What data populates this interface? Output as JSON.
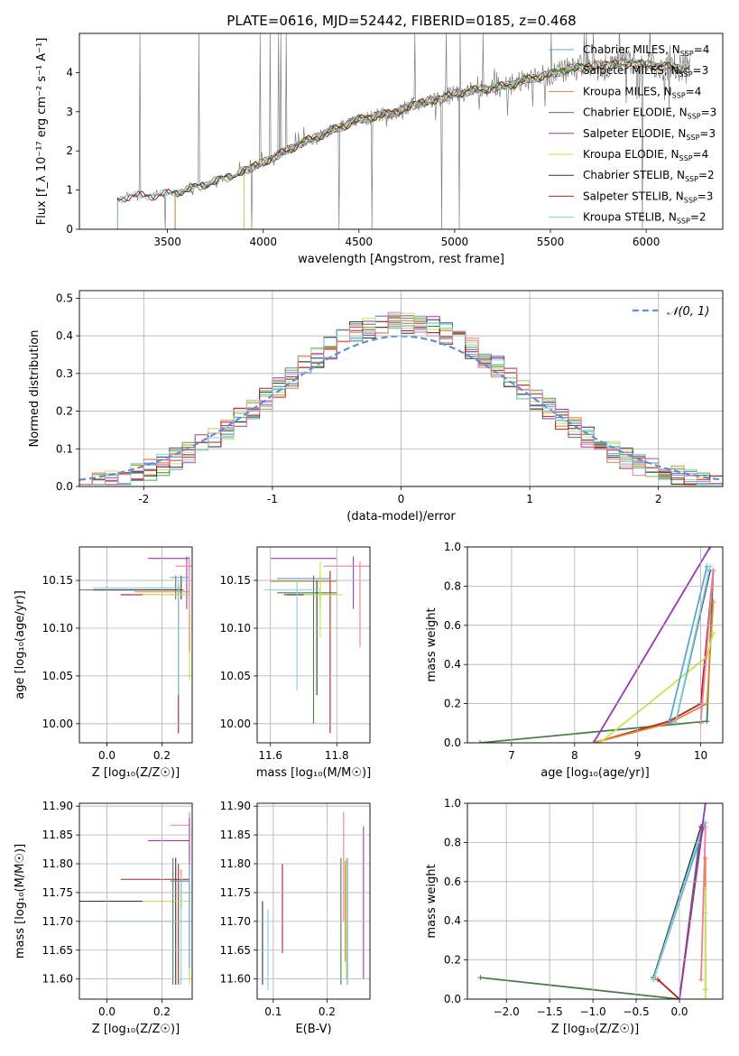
{
  "figure": {
    "title": "PLATE=0616, MJD=52442, FIBERID=0185, z=0.468"
  },
  "chart_data": [
    {
      "id": "spectrum",
      "type": "line",
      "xlabel": "wavelength [Angstrom, rest frame]",
      "ylabel": "Flux [f_λ 10⁻¹⁷ erg cm⁻² s⁻¹ A⁻¹]",
      "xlim": [
        3040,
        6400
      ],
      "ylim": [
        0,
        5
      ],
      "xticks": [
        3500,
        4000,
        4500,
        5000,
        5500,
        6000
      ],
      "yticks": [
        0,
        1,
        2,
        3,
        4
      ],
      "grid": false,
      "legend_position": "upper-right",
      "data_trend": {
        "x": [
          3240,
          3300,
          3400,
          3500,
          3600,
          3700,
          3800,
          3900,
          4000,
          4100,
          4200,
          4300,
          4400,
          4500,
          4600,
          4700,
          4800,
          4900,
          5000,
          5100,
          5200,
          5300,
          5400,
          5500,
          5600,
          5700,
          5800,
          5900,
          6000,
          6100,
          6200
        ],
        "y": [
          0.75,
          0.85,
          0.85,
          0.9,
          1.0,
          1.15,
          1.3,
          1.5,
          1.7,
          1.95,
          2.2,
          2.4,
          2.6,
          2.8,
          2.9,
          3.0,
          3.2,
          3.3,
          3.45,
          3.55,
          3.6,
          3.7,
          3.85,
          3.95,
          4.1,
          4.15,
          4.2,
          4.25,
          4.2,
          4.15,
          4.1
        ]
      },
      "series": [
        {
          "name": "Chabrier MILES",
          "nssp": "4",
          "color": "#5da5da",
          "start": 3540
        },
        {
          "name": "Salpeter MILES",
          "nssp": "3",
          "color": "#40b040",
          "start": 3540
        },
        {
          "name": "Kroupa MILES",
          "nssp": "4",
          "color": "#e3862f",
          "start": 3540
        },
        {
          "name": "Chabrier ELODIE",
          "nssp": "3",
          "color": "#4d7d4d",
          "start": 3900
        },
        {
          "name": "Salpeter ELODIE",
          "nssp": "3",
          "color": "#9b37b3",
          "start": 3900
        },
        {
          "name": "Kroupa ELODIE",
          "nssp": "4",
          "color": "#cde34b",
          "start": 3900
        },
        {
          "name": "Chabrier STELIB",
          "nssp": "2",
          "color": "#333333",
          "start": 3240
        },
        {
          "name": "Salpeter STELIB",
          "nssp": "3",
          "color": "#b22222",
          "start": 3240
        },
        {
          "name": "Kroupa STELIB",
          "nssp": "2",
          "color": "#7fd3df",
          "start": 3240
        }
      ]
    },
    {
      "id": "residuals",
      "type": "line",
      "xlabel": "(data-model)/error",
      "ylabel": "Normed distribution",
      "xlim": [
        -2.5,
        2.5
      ],
      "ylim": [
        0,
        0.52
      ],
      "xticks": [
        -2,
        -1,
        0,
        1,
        2
      ],
      "yticks": [
        0.0,
        0.1,
        0.2,
        0.3,
        0.4,
        0.5
      ],
      "ytick_labels": [
        "0.0",
        "0.1",
        "0.2",
        "0.3",
        "0.4",
        "0.5"
      ],
      "grid": true,
      "legend_position": "upper-right",
      "gaussian_legend": "𝒩(0, 1)",
      "gaussian_color": "#5b8fd9",
      "bin_edges_start": -2.5,
      "bin_width": 0.1,
      "hist_colors": [
        "#5da5da",
        "#40b040",
        "#e3862f",
        "#4d7d4d",
        "#9b37b3",
        "#cde34b",
        "#333333",
        "#b22222",
        "#7fd3df",
        "#f07c9b"
      ]
    },
    {
      "id": "age-vs-Z",
      "type": "scatter",
      "xlabel": "Z [log₁₀(Z/Z☉)]",
      "ylabel": "age  [log₁₀(age/yr)]",
      "xlim": [
        -0.1,
        0.31
      ],
      "ylim": [
        9.98,
        10.185
      ],
      "xticks": [
        0.0,
        0.2
      ],
      "xtick_labels": [
        "0.0",
        "0.2"
      ],
      "yticks": [
        10.0,
        10.05,
        10.1,
        10.15
      ],
      "ytick_labels": [
        "10.00",
        "10.05",
        "10.10",
        "10.15"
      ],
      "grid": true,
      "errorbars": [
        {
          "x": [
            -0.1,
            0.28
          ],
          "y": 10.14,
          "xc": 0.25,
          "yr": [
            10.13,
            10.155
          ],
          "color": "#4d7d4d"
        },
        {
          "x": [
            -0.05,
            0.27
          ],
          "y": 10.14,
          "xc": 0.27,
          "yr": [
            10.13,
            10.155
          ],
          "color": "#333333"
        },
        {
          "x": [
            0.05,
            0.3
          ],
          "y": 10.135,
          "xc": 0.26,
          "yr": [
            9.99,
            10.145
          ],
          "color": "#b22222"
        },
        {
          "x": [
            0.15,
            0.3
          ],
          "y": 10.173,
          "xc": 0.29,
          "yr": [
            10.12,
            10.175
          ],
          "color": "#9b37b3"
        },
        {
          "x": [
            0.13,
            0.3
          ],
          "y": 10.135,
          "xc": 0.3,
          "yr": [
            10.045,
            10.175
          ],
          "color": "#cde34b"
        },
        {
          "x": [
            0.1,
            0.3
          ],
          "y": 10.138,
          "xc": 0.3,
          "yr": [
            10.075,
            10.175
          ],
          "color": "#e3862f"
        },
        {
          "x": [
            0.23,
            0.3
          ],
          "y": 10.153,
          "xc": 0.3,
          "yr": [
            10.13,
            10.175
          ],
          "color": "#5da5da"
        },
        {
          "x": [
            0.25,
            0.31
          ],
          "y": 10.165,
          "xc": 0.3,
          "yr": [
            10.12,
            10.175
          ],
          "color": "#f07c9b"
        },
        {
          "x": [
            -0.05,
            0.27
          ],
          "y": 10.142,
          "xc": 0.26,
          "yr": [
            10.03,
            10.15
          ],
          "color": "#7fd3df"
        }
      ]
    },
    {
      "id": "age-vs-mass",
      "type": "scatter",
      "xlabel": "mass [log₁₀(M/M☉)]",
      "xlim": [
        11.56,
        11.9
      ],
      "ylim": [
        9.98,
        10.185
      ],
      "xticks": [
        11.6,
        11.8
      ],
      "xtick_labels": [
        "11.6",
        "11.8"
      ],
      "yticks": [
        10.0,
        10.05,
        10.1,
        10.15
      ],
      "ytick_labels": [
        "10.00",
        "10.05",
        "10.10",
        "10.15"
      ],
      "grid": true,
      "errorbars": [
        {
          "x": [
            11.6,
            11.8
          ],
          "y": 10.173,
          "xc": 11.85,
          "yr": [
            10.12,
            10.175
          ],
          "color": "#9b37b3"
        },
        {
          "x": [
            11.76,
            11.9
          ],
          "y": 10.165,
          "xc": 11.87,
          "yr": [
            10.08,
            10.17
          ],
          "color": "#f07c9b"
        },
        {
          "x": [
            11.62,
            11.78
          ],
          "y": 10.152,
          "xc": 11.73,
          "yr": [
            10.13,
            10.155
          ],
          "color": "#5da5da"
        },
        {
          "x": [
            11.6,
            11.8
          ],
          "y": 10.149,
          "xc": 11.75,
          "yr": [
            10.12,
            10.155
          ],
          "color": "#e3862f"
        },
        {
          "x": [
            11.62,
            11.8
          ],
          "y": 10.137,
          "xc": 11.73,
          "yr": [
            10.0,
            10.155
          ],
          "color": "#4d7d4d"
        },
        {
          "x": [
            11.64,
            11.8
          ],
          "y": 10.135,
          "xc": 11.78,
          "yr": [
            9.99,
            10.16
          ],
          "color": "#b22222"
        },
        {
          "x": [
            11.65,
            11.8
          ],
          "y": 10.135,
          "xc": 11.74,
          "yr": [
            10.03,
            10.15
          ],
          "color": "#333333"
        },
        {
          "x": [
            11.58,
            11.75
          ],
          "y": 10.14,
          "xc": 11.68,
          "yr": [
            10.035,
            10.15
          ],
          "color": "#7fd3df"
        },
        {
          "x": [
            11.7,
            11.82
          ],
          "y": 10.135,
          "xc": 11.75,
          "yr": [
            10.09,
            10.17
          ],
          "color": "#cde34b"
        }
      ]
    },
    {
      "id": "weight-vs-age",
      "type": "line",
      "xlabel": "age  [log₁₀(age/yr)]",
      "ylabel": "mass weight",
      "xlim": [
        6.3,
        10.35
      ],
      "ylim": [
        0,
        1.0
      ],
      "xticks": [
        7,
        8,
        9,
        10
      ],
      "yticks": [
        0.0,
        0.2,
        0.4,
        0.6,
        0.8,
        1.0
      ],
      "ytick_labels": [
        "0.0",
        "0.2",
        "0.4",
        "0.6",
        "0.8",
        "1.0"
      ],
      "grid": true,
      "series": [
        {
          "color": "#4d7d4d",
          "x": [
            6.5,
            10.1,
            10.2
          ],
          "y": [
            0.0,
            0.11,
            0.88
          ]
        },
        {
          "color": "#9b37b3",
          "x": [
            8.3,
            10.15
          ],
          "y": [
            0.0,
            1.0
          ]
        },
        {
          "color": "#b22222",
          "x": [
            8.3,
            9.5,
            10.0,
            10.2
          ],
          "y": [
            0.0,
            0.11,
            0.2,
            0.88
          ]
        },
        {
          "color": "#e3862f",
          "x": [
            8.3,
            9.5,
            10.1,
            10.2
          ],
          "y": [
            0.0,
            0.1,
            0.2,
            0.72
          ]
        },
        {
          "color": "#cde34b",
          "x": [
            8.4,
            10.1,
            10.2
          ],
          "y": [
            0.0,
            0.44,
            0.56
          ]
        },
        {
          "color": "#333333",
          "x": [
            9.6,
            10.15
          ],
          "y": [
            0.1,
            0.88
          ]
        },
        {
          "color": "#5da5da",
          "x": [
            9.5,
            10.1
          ],
          "y": [
            0.1,
            0.9
          ]
        },
        {
          "color": "#7fd3df",
          "x": [
            9.6,
            10.15
          ],
          "y": [
            0.1,
            0.9
          ]
        },
        {
          "color": "#f07c9b",
          "x": [
            10.0,
            10.2
          ],
          "y": [
            0.1,
            0.88
          ]
        }
      ]
    },
    {
      "id": "mass-vs-Z",
      "type": "scatter",
      "xlabel": "Z [log₁₀(Z/Z☉)]",
      "ylabel": "mass [log₁₀(M/M☉)]",
      "xlim": [
        -0.1,
        0.31
      ],
      "ylim": [
        11.565,
        11.905
      ],
      "xticks": [
        0.0,
        0.2
      ],
      "xtick_labels": [
        "0.0",
        "0.2"
      ],
      "yticks": [
        11.6,
        11.65,
        11.7,
        11.75,
        11.8,
        11.85,
        11.9
      ],
      "ytick_labels": [
        "11.60",
        "11.65",
        "11.70",
        "11.75",
        "11.80",
        "11.85",
        "11.90"
      ],
      "grid": true,
      "errorbars": [
        {
          "x": [
            0.23,
            0.3
          ],
          "y": 11.867,
          "xc": 0.3,
          "yr": [
            11.8,
            11.89
          ],
          "color": "#f07c9b"
        },
        {
          "x": [
            0.15,
            0.3
          ],
          "y": 11.84,
          "xc": 0.3,
          "yr": [
            11.6,
            11.88
          ],
          "color": "#9b37b3"
        },
        {
          "x": [
            0.05,
            0.3
          ],
          "y": 11.773,
          "xc": 0.26,
          "yr": [
            11.59,
            11.8
          ],
          "color": "#b22222"
        },
        {
          "x": [
            0.24,
            0.3
          ],
          "y": 11.75,
          "xc": 0.27,
          "yr": [
            11.72,
            11.79
          ],
          "color": "#e3862f"
        },
        {
          "x": [
            -0.1,
            0.28
          ],
          "y": 11.735,
          "xc": 0.25,
          "yr": [
            11.59,
            11.81
          ],
          "color": "#333333"
        },
        {
          "x": [
            0.13,
            0.3
          ],
          "y": 11.735,
          "xc": 0.3,
          "yr": [
            11.59,
            11.78
          ],
          "color": "#cde34b"
        },
        {
          "x": [
            -0.01,
            0.3
          ],
          "y": 11.7,
          "xc": 0.27,
          "yr": [
            11.59,
            11.78
          ],
          "color": "#7fd3df"
        },
        {
          "x": [
            0.23,
            0.3
          ],
          "y": 11.77,
          "xc": 0.24,
          "yr": [
            11.59,
            11.81
          ],
          "color": "#4d7d4d"
        },
        {
          "x": [
            0.23,
            0.3
          ],
          "y": 11.77,
          "xc": 0.3,
          "yr": [
            11.62,
            11.8
          ],
          "color": "#5da5da"
        }
      ]
    },
    {
      "id": "mass-vs-EBV",
      "type": "scatter",
      "xlabel": "E(B-V)",
      "xlim": [
        0.07,
        0.28
      ],
      "ylim": [
        11.565,
        11.905
      ],
      "xticks": [
        0.1,
        0.2
      ],
      "xtick_labels": [
        "0.1",
        "0.2"
      ],
      "yticks": [
        11.6,
        11.65,
        11.7,
        11.75,
        11.8,
        11.85,
        11.9
      ],
      "ytick_labels": [
        "11.60",
        "11.65",
        "11.70",
        "11.75",
        "11.80",
        "11.85",
        "11.90"
      ],
      "grid": true,
      "vbars": [
        {
          "x": 0.08,
          "yr": [
            11.59,
            11.735
          ],
          "color": "#333333"
        },
        {
          "x": 0.09,
          "yr": [
            11.58,
            11.72
          ],
          "color": "#7fd3df"
        },
        {
          "x": 0.117,
          "yr": [
            11.645,
            11.8
          ],
          "color": "#b22222"
        },
        {
          "x": 0.226,
          "yr": [
            11.59,
            11.81
          ],
          "color": "#4d7d4d"
        },
        {
          "x": 0.231,
          "yr": [
            11.7,
            11.89
          ],
          "color": "#f07c9b"
        },
        {
          "x": 0.234,
          "yr": [
            11.63,
            11.805
          ],
          "color": "#e3862f"
        },
        {
          "x": 0.236,
          "yr": [
            11.6,
            11.81
          ],
          "color": "#cde34b"
        },
        {
          "x": 0.238,
          "yr": [
            11.59,
            11.81
          ],
          "color": "#5da5da"
        },
        {
          "x": 0.268,
          "yr": [
            11.6,
            11.865
          ],
          "color": "#9b37b3"
        }
      ]
    },
    {
      "id": "weight-vs-Z",
      "type": "line",
      "xlabel": "Z [log₁₀(Z/Z☉)]",
      "ylabel": "mass weight",
      "xlim": [
        -2.45,
        0.5
      ],
      "ylim": [
        0,
        1.0
      ],
      "xticks": [
        -2.0,
        -1.5,
        -1.0,
        -0.5,
        0.0
      ],
      "xtick_labels": [
        "−2.0",
        "−1.5",
        "−1.0",
        "−0.5",
        "0.0"
      ],
      "yticks": [
        0.0,
        0.2,
        0.4,
        0.6,
        0.8,
        1.0
      ],
      "ytick_labels": [
        "0.0",
        "0.2",
        "0.4",
        "0.6",
        "0.8",
        "1.0"
      ],
      "grid": true,
      "series": [
        {
          "color": "#4d7d4d",
          "x": [
            -2.3,
            0.0,
            0.25
          ],
          "y": [
            0.11,
            0.0,
            0.88
          ]
        },
        {
          "color": "#333333",
          "x": [
            -0.3,
            0.25
          ],
          "y": [
            0.11,
            0.88
          ]
        },
        {
          "color": "#5da5da",
          "x": [
            -0.3,
            0.3
          ],
          "y": [
            0.1,
            0.9
          ]
        },
        {
          "color": "#7fd3df",
          "x": [
            -0.3,
            0.28
          ],
          "y": [
            0.1,
            0.9
          ]
        },
        {
          "color": "#b22222",
          "x": [
            -0.25,
            0.0,
            0.27
          ],
          "y": [
            0.1,
            0.0,
            0.88
          ]
        },
        {
          "color": "#9b37b3",
          "x": [
            0.0,
            0.3
          ],
          "y": [
            0.0,
            1.0
          ]
        },
        {
          "color": "#e3862f",
          "x": [
            0.3,
            0.3,
            0.3
          ],
          "y": [
            0.05,
            0.2,
            0.72
          ]
        },
        {
          "color": "#cde34b",
          "x": [
            0.3,
            0.3,
            0.3
          ],
          "y": [
            0.0,
            0.44,
            0.56
          ]
        },
        {
          "color": "#f07c9b",
          "x": [
            0.25,
            0.3
          ],
          "y": [
            0.1,
            0.88
          ]
        }
      ]
    }
  ]
}
